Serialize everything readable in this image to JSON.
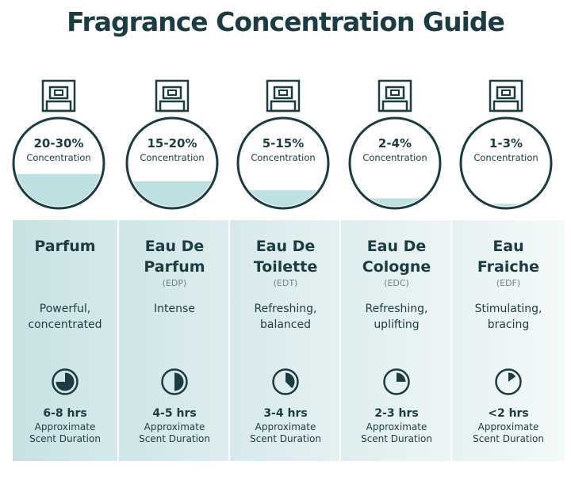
{
  "title": "Fragrance Concentration Guide",
  "colors": {
    "ink": "#1c3b42",
    "liquid": "#bfe0e2",
    "panel_dark": "#c7e1e3",
    "panel_light": "#f2f8f8"
  },
  "chart_data": {
    "type": "table",
    "rows": [
      {
        "concentration": "20-30%",
        "concentration_label": "Concentration",
        "fill_level": 0.38,
        "name_line1": "Parfum",
        "name_line2": "",
        "abbr": "",
        "desc_line1": "Powerful,",
        "desc_line2": "concentrated",
        "duration": "6-8 hrs",
        "duration_label1": "Approximate",
        "duration_label2": "Scent Duration",
        "clock_fraction": 0.75,
        "icon": "clock-pie-icon"
      },
      {
        "concentration": "15-20%",
        "concentration_label": "Concentration",
        "fill_level": 0.3,
        "name_line1": "Eau De",
        "name_line2": "Parfum",
        "abbr": "(EDP)",
        "desc_line1": "Intense",
        "desc_line2": "",
        "duration": "4-5 hrs",
        "duration_label1": "Approximate",
        "duration_label2": "Scent Duration",
        "clock_fraction": 0.5,
        "icon": "clock-pie-icon"
      },
      {
        "concentration": "5-15%",
        "concentration_label": "Concentration",
        "fill_level": 0.2,
        "name_line1": "Eau De",
        "name_line2": "Toilette",
        "abbr": "(EDT)",
        "desc_line1": "Refreshing,",
        "desc_line2": "balanced",
        "duration": "3-4 hrs",
        "duration_label1": "Approximate",
        "duration_label2": "Scent Duration",
        "clock_fraction": 0.375,
        "icon": "clock-pie-icon"
      },
      {
        "concentration": "2-4%",
        "concentration_label": "Concentration",
        "fill_level": 0.11,
        "name_line1": "Eau De",
        "name_line2": "Cologne",
        "abbr": "(EDC)",
        "desc_line1": "Refreshing,",
        "desc_line2": "uplifting",
        "duration": "2-3 hrs",
        "duration_label1": "Approximate",
        "duration_label2": "Scent Duration",
        "clock_fraction": 0.25,
        "icon": "clock-pie-icon"
      },
      {
        "concentration": "1-3%",
        "concentration_label": "Concentration",
        "fill_level": 0.05,
        "name_line1": "Eau",
        "name_line2": "Fraiche",
        "abbr": "(EDF)",
        "desc_line1": "Stimulating,",
        "desc_line2": "bracing",
        "duration": "<2 hrs",
        "duration_label1": "Approximate",
        "duration_label2": "Scent Duration",
        "clock_fraction": 0.15,
        "icon": "clock-pie-icon"
      }
    ]
  }
}
